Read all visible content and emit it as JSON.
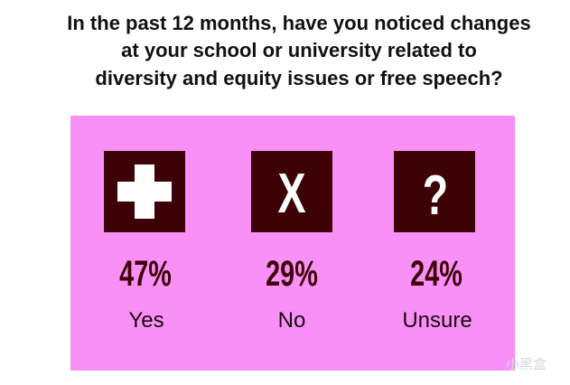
{
  "title": [
    "In the past 12 months, have you noticed changes",
    "at your school or university related to",
    "diversity and equity issues or free speech?"
  ],
  "items": [
    {
      "value": "47%",
      "label": "Yes"
    },
    {
      "icon": "X",
      "value": "29%",
      "label": "No"
    },
    {
      "icon": "?",
      "value": "24%",
      "label": "Unsure"
    }
  ],
  "watermark": "小黑盒"
}
